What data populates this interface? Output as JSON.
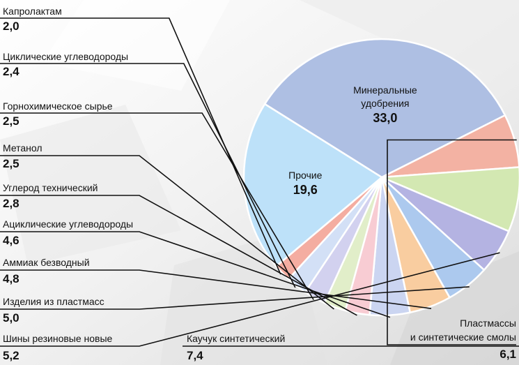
{
  "chart_data": {
    "type": "pie",
    "slices": [
      {
        "name": "Минеральные удобрения",
        "value": 33.0,
        "value_label": "33,0",
        "color": "#aebfe3"
      },
      {
        "name": "Пластмассы и синтетические смолы",
        "value": 6.1,
        "value_label": "6,1",
        "color": "#f3b2a3"
      },
      {
        "name": "Каучук синтетический",
        "value": 7.4,
        "value_label": "7,4",
        "color": "#d3e8b2"
      },
      {
        "name": "Шины резиновые новые",
        "value": 5.2,
        "value_label": "5,2",
        "color": "#b4b3e2"
      },
      {
        "name": "Изделия из пластмасс",
        "value": 5.0,
        "value_label": "5,0",
        "color": "#acc9ee"
      },
      {
        "name": "Аммиак безводный",
        "value": 4.8,
        "value_label": "4,8",
        "color": "#f9cda0"
      },
      {
        "name": "Ациклические углеводороды",
        "value": 4.6,
        "value_label": "4,6",
        "color": "#cbd5f1"
      },
      {
        "name": "Углерод технический",
        "value": 2.8,
        "value_label": "2,8",
        "color": "#f8ccd3"
      },
      {
        "name": "Метанол",
        "value": 2.5,
        "value_label": "2,5",
        "color": "#e1eec9"
      },
      {
        "name": "Горнохимическое сырье",
        "value": 2.5,
        "value_label": "2,5",
        "color": "#d2d1ef"
      },
      {
        "name": "Циклические углеводороды",
        "value": 2.4,
        "value_label": "2,4",
        "color": "#d3e0f6"
      },
      {
        "name": "Капролактам",
        "value": 2.0,
        "value_label": "2,0",
        "color": "#f4ada1"
      },
      {
        "name": "Прочие",
        "value": 19.6,
        "value_label": "19,6",
        "color": "#bde1f9"
      }
    ],
    "inside_labels": {
      "mineral": [
        "Минеральные",
        "удобрения"
      ],
      "other": [
        "Прочие"
      ]
    },
    "outside_labels": {
      "plastics": [
        "Пластмассы",
        "и синтетические смолы"
      ]
    }
  }
}
